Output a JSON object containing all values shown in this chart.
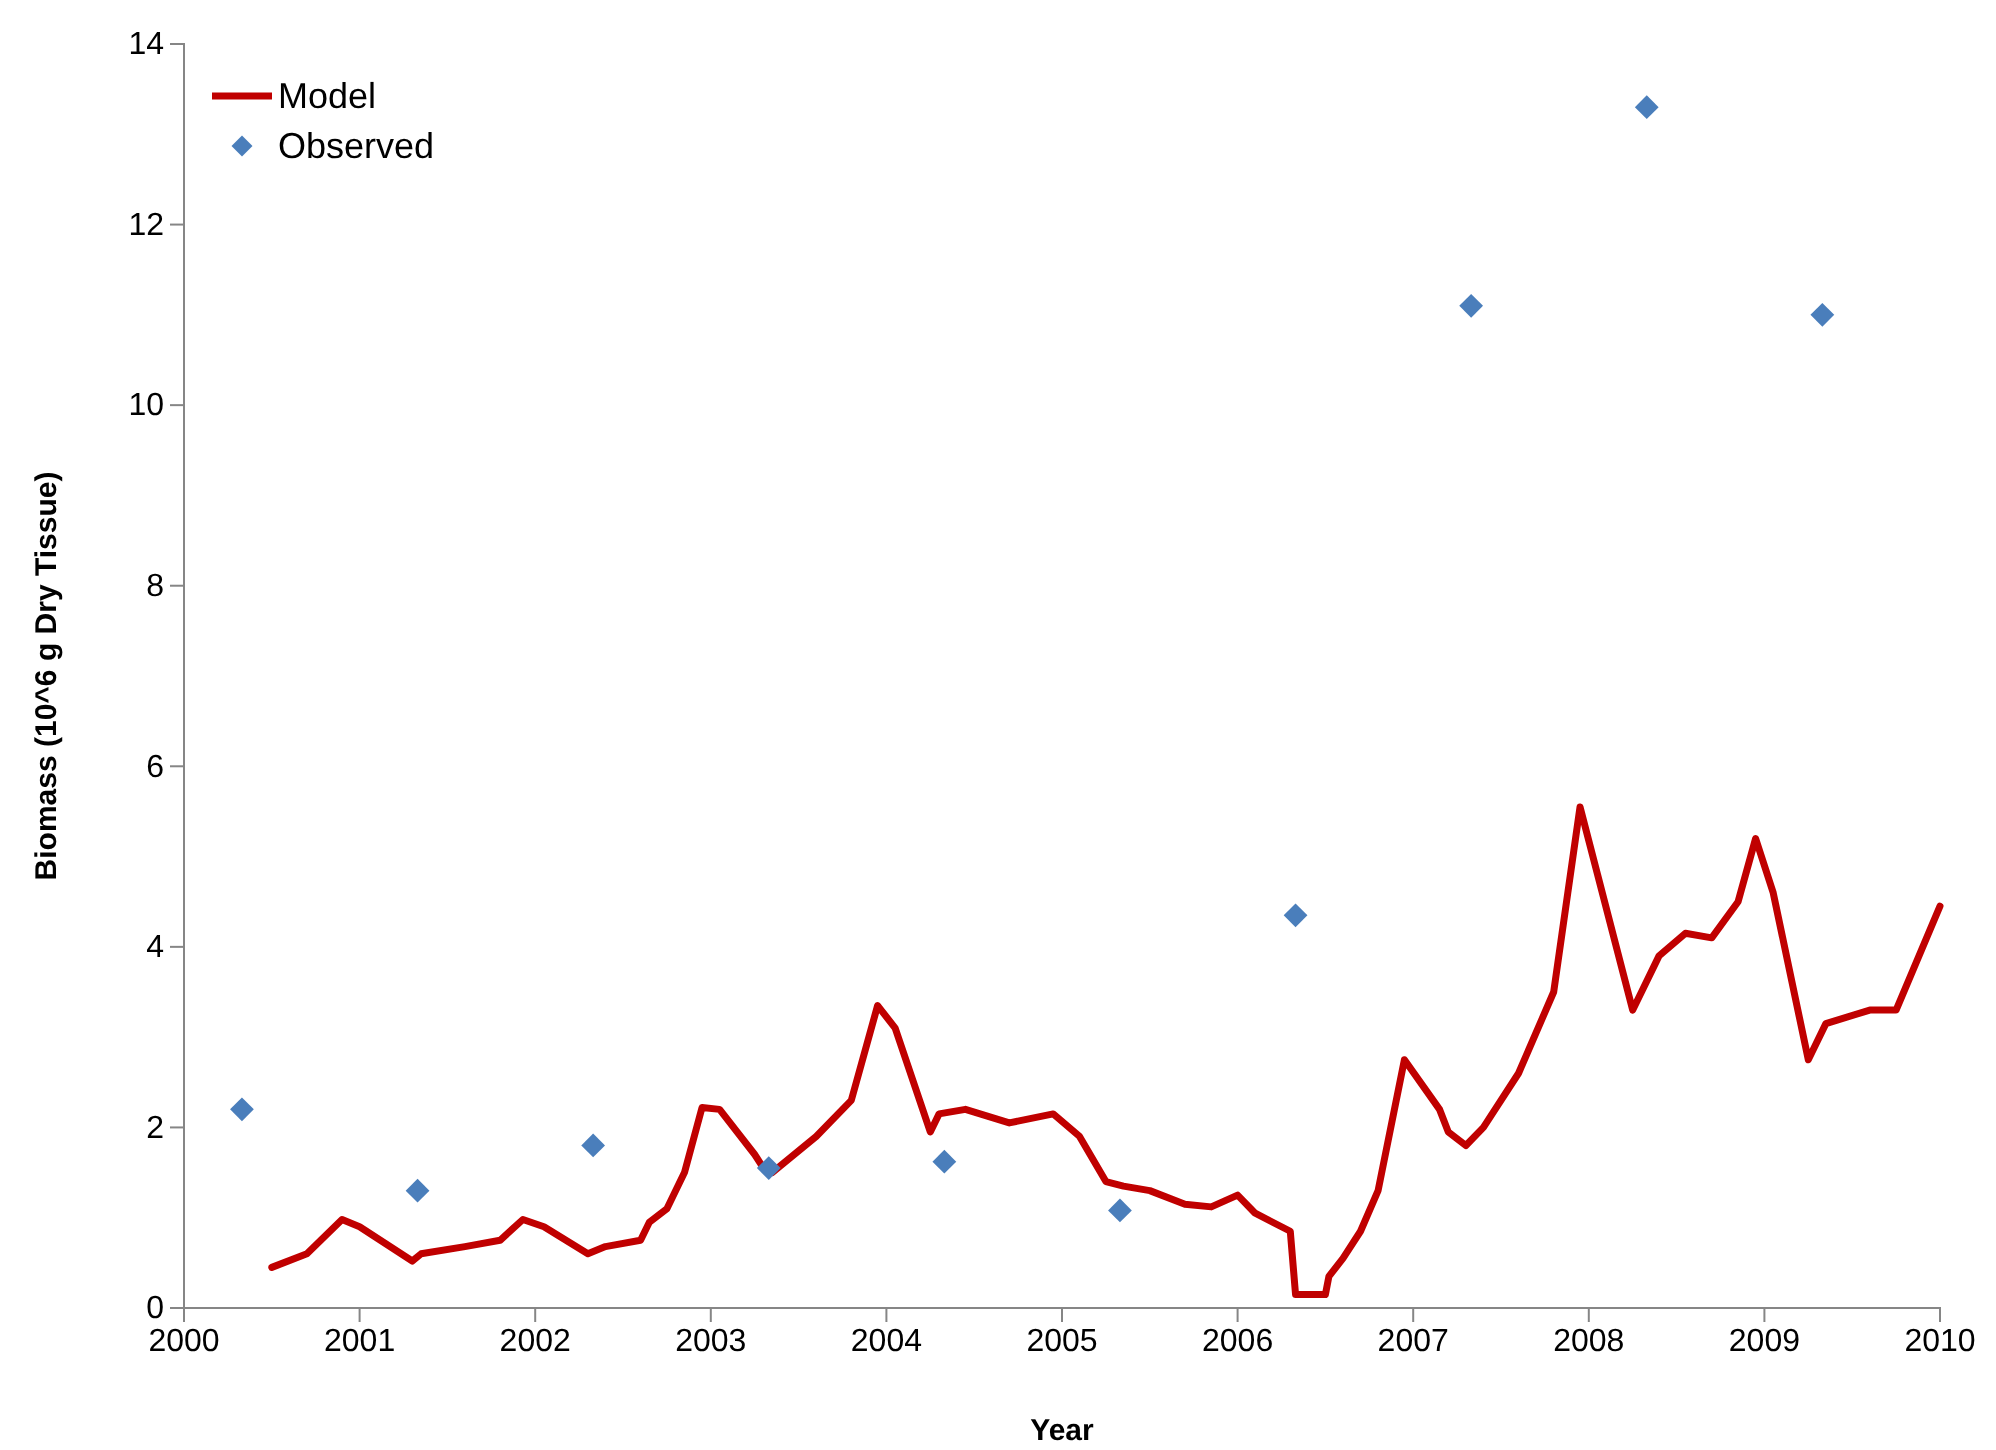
{
  "chart_data": {
    "type": "line",
    "xlabel": "Year",
    "ylabel": "Biomass (10^6 g Dry Tissue)",
    "xlim": [
      2000,
      2010
    ],
    "xticks": [
      2000,
      2001,
      2002,
      2003,
      2004,
      2005,
      2006,
      2007,
      2008,
      2009,
      2010
    ],
    "ylim": [
      0,
      14
    ],
    "yticks": [
      0,
      2,
      4,
      6,
      8,
      10,
      12,
      14
    ],
    "grid": false,
    "legend": "top left",
    "series": [
      {
        "name": "Model",
        "color": "#c00000",
        "marker": "none",
        "line_style": "solid",
        "x": [
          2000.5,
          2000.7,
          2000.9,
          2001.0,
          2001.3,
          2001.35,
          2001.6,
          2001.8,
          2001.93,
          2002.05,
          2002.3,
          2002.4,
          2002.6,
          2002.65,
          2002.75,
          2002.85,
          2002.95,
          2003.05,
          2003.25,
          2003.3,
          2003.35,
          2003.6,
          2003.8,
          2003.95,
          2004.05,
          2004.25,
          2004.3,
          2004.45,
          2004.7,
          2004.95,
          2005.1,
          2005.25,
          2005.35,
          2005.5,
          2005.7,
          2005.85,
          2006.0,
          2006.1,
          2006.3,
          2006.33,
          2006.5,
          2006.52,
          2006.6,
          2006.7,
          2006.8,
          2006.95,
          2007.15,
          2007.2,
          2007.3,
          2007.4,
          2007.6,
          2007.8,
          2007.95,
          2008.05,
          2008.25,
          2008.3,
          2008.4,
          2008.55,
          2008.7,
          2008.85,
          2008.95,
          2009.05,
          2009.25,
          2009.35,
          2009.6,
          2009.75,
          2010.0
        ],
        "values": [
          0.45,
          0.6,
          0.98,
          0.9,
          0.52,
          0.6,
          0.68,
          0.75,
          0.98,
          0.9,
          0.6,
          0.68,
          0.75,
          0.95,
          1.1,
          1.5,
          2.22,
          2.2,
          1.7,
          1.55,
          1.5,
          1.9,
          2.3,
          3.35,
          3.1,
          1.95,
          2.15,
          2.2,
          2.05,
          2.15,
          1.9,
          1.4,
          1.35,
          1.3,
          1.15,
          1.12,
          1.25,
          1.05,
          0.85,
          0.15,
          0.15,
          0.35,
          0.55,
          0.85,
          1.3,
          2.75,
          2.2,
          1.95,
          1.8,
          2.0,
          2.6,
          3.5,
          5.55,
          4.8,
          3.3,
          3.5,
          3.9,
          4.15,
          4.1,
          4.5,
          5.2,
          4.6,
          2.75,
          3.15,
          3.3,
          3.3,
          4.45
        ]
      },
      {
        "name": "Observed",
        "type": "scatter",
        "color": "#4a7ebb",
        "marker": "diamond",
        "x": [
          2000.33,
          2001.33,
          2002.33,
          2003.33,
          2004.33,
          2005.33,
          2006.33,
          2007.33,
          2008.33,
          2009.33
        ],
        "values": [
          2.2,
          1.3,
          1.8,
          1.55,
          1.62,
          1.08,
          4.35,
          11.1,
          13.3,
          11.0
        ]
      }
    ]
  }
}
